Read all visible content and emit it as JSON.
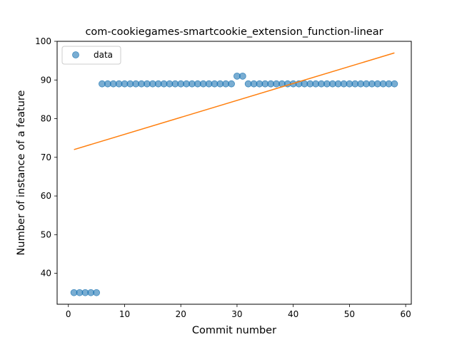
{
  "chart_data": {
    "type": "scatter",
    "title": "com-cookiegames-smartcookie_extension_function-linear",
    "xlabel": "Commit number",
    "ylabel": "Number of instance of a feature",
    "xlim": [
      -2,
      61
    ],
    "ylim": [
      32,
      100
    ],
    "xticks": [
      0,
      10,
      20,
      30,
      40,
      50,
      60
    ],
    "yticks": [
      40,
      50,
      60,
      70,
      80,
      90,
      100
    ],
    "grid": false,
    "legend": {
      "placement": "upper-left",
      "entries": [
        "data"
      ]
    },
    "series": [
      {
        "name": "data",
        "kind": "scatter",
        "color": "#1f77b4",
        "x": [
          1,
          2,
          3,
          4,
          5,
          6,
          7,
          8,
          9,
          10,
          11,
          12,
          13,
          14,
          15,
          16,
          17,
          18,
          19,
          20,
          21,
          22,
          23,
          24,
          25,
          26,
          27,
          28,
          29,
          30,
          31,
          32,
          33,
          34,
          35,
          36,
          37,
          38,
          39,
          40,
          41,
          42,
          43,
          44,
          45,
          46,
          47,
          48,
          49,
          50,
          51,
          52,
          53,
          54,
          55,
          56,
          57,
          58
        ],
        "y": [
          35,
          35,
          35,
          35,
          35,
          89,
          89,
          89,
          89,
          89,
          89,
          89,
          89,
          89,
          89,
          89,
          89,
          89,
          89,
          89,
          89,
          89,
          89,
          89,
          89,
          89,
          89,
          89,
          89,
          91,
          91,
          89,
          89,
          89,
          89,
          89,
          89,
          89,
          89,
          89,
          89,
          89,
          89,
          89,
          89,
          89,
          89,
          89,
          89,
          89,
          89,
          89,
          89,
          89,
          89,
          89,
          89,
          89
        ]
      },
      {
        "kind": "line",
        "color": "#ff7f0e",
        "x": [
          1,
          58
        ],
        "y": [
          72,
          97
        ]
      }
    ]
  }
}
